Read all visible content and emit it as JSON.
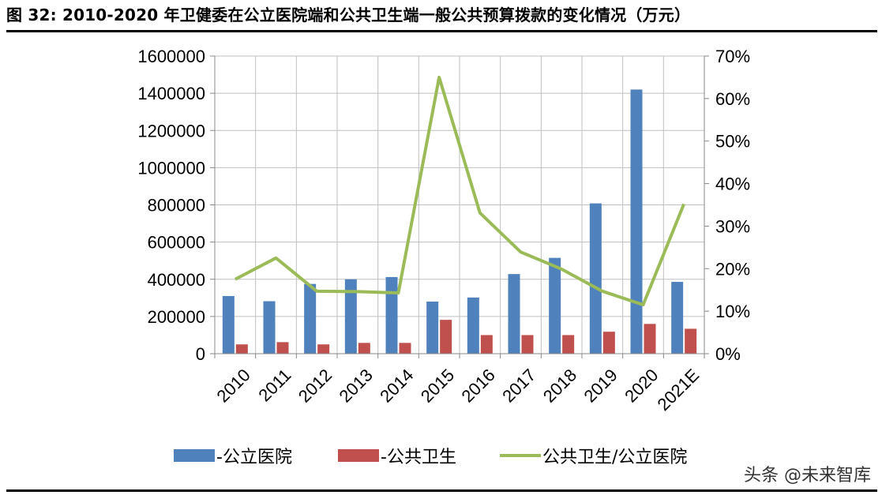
{
  "title": "图 32: 2010-2020 年卫健委在公立医院端和公共卫生端一般公共预算拨款的变化情况（万元）",
  "watermark": "头条 @未来智库",
  "colors": {
    "hospital": "#4f81bd",
    "public_health": "#c0504d",
    "ratio": "#9bbb59",
    "grid": "#bfbfbf",
    "axis": "#888888"
  },
  "chart_data": {
    "type": "bar",
    "categories": [
      "2010",
      "2011",
      "2012",
      "2013",
      "2014",
      "2015",
      "2016",
      "2017",
      "2018",
      "2019",
      "2020",
      "2021E"
    ],
    "series": [
      {
        "name": "-公立医院",
        "type": "bar",
        "axis": "left",
        "values": [
          310000,
          282000,
          375000,
          400000,
          412000,
          280000,
          302000,
          428000,
          515000,
          808000,
          1420000,
          386000
        ]
      },
      {
        "name": "-公共卫生",
        "type": "bar",
        "axis": "left",
        "values": [
          50000,
          62000,
          50000,
          58000,
          58000,
          182000,
          100000,
          100000,
          100000,
          118000,
          160000,
          134000
        ]
      },
      {
        "name": "公共卫生/公立医院",
        "type": "line",
        "axis": "right",
        "values": [
          17.5,
          22.5,
          14.7,
          14.6,
          14.3,
          65.0,
          33.1,
          23.9,
          19.9,
          14.7,
          11.5,
          35.2
        ]
      }
    ],
    "ylim": [
      0,
      1600000
    ],
    "y_ticks": [
      "0",
      "200000",
      "400000",
      "600000",
      "800000",
      "1000000",
      "1200000",
      "1400000",
      "1600000"
    ],
    "y2lim": [
      0,
      70
    ],
    "y2_ticks": [
      "0%",
      "10%",
      "20%",
      "30%",
      "40%",
      "50%",
      "60%",
      "70%"
    ],
    "grid": true,
    "legend_position": "bottom",
    "xlabel": "",
    "ylabel": "",
    "y2label": ""
  }
}
